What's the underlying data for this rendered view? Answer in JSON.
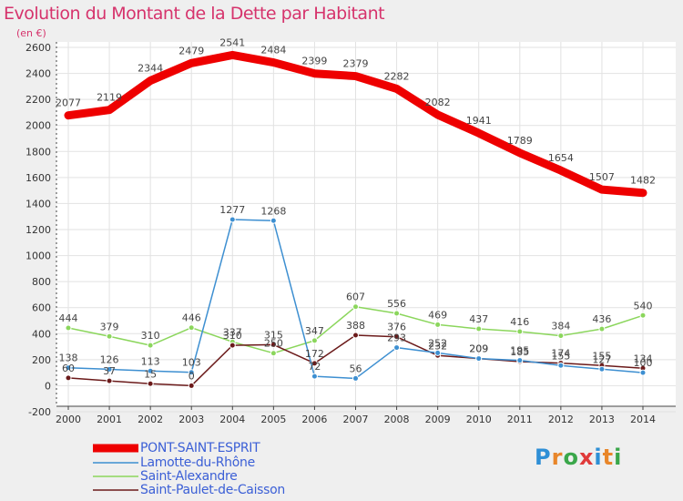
{
  "title": "Evolution du Montant de la Dette par Habitant",
  "subtitle": "(en €)",
  "logo": "Proxiti",
  "colors": {
    "title": "#d6336c",
    "background": "#efefef",
    "plot_background": "#ffffff",
    "legend_text": "#3b5fd6"
  },
  "chart_data": {
    "type": "line",
    "title": "Evolution du Montant de la Dette par Habitant",
    "ylabel": "(en €)",
    "xlabel": "",
    "x": [
      "2000",
      "2001",
      "2002",
      "2003",
      "2004",
      "2005",
      "2006",
      "2007",
      "2008",
      "2009",
      "2010",
      "2011",
      "2012",
      "2013",
      "2014"
    ],
    "yticks": [
      -200,
      0,
      200,
      400,
      600,
      800,
      1000,
      1200,
      1400,
      1600,
      1800,
      2000,
      2200,
      2400,
      2600
    ],
    "ylim": [
      -200,
      2600
    ],
    "grid": true,
    "legend_position": "bottom-left",
    "series": [
      {
        "name": "PONT-SAINT-ESPRIT",
        "color": "#ee0000",
        "values": [
          2077,
          2119,
          2344,
          2479,
          2541,
          2484,
          2399,
          2379,
          2282,
          2082,
          1941,
          1789,
          1654,
          1507,
          1482
        ]
      },
      {
        "name": "Lamotte-du-Rhône",
        "color": "#3d8fd1",
        "values": [
          138,
          126,
          113,
          103,
          1277,
          1268,
          72,
          56,
          293,
          252,
          209,
          195,
          155,
          127,
          100
        ]
      },
      {
        "name": "Saint-Alexandre",
        "color": "#8bd65c",
        "values": [
          444,
          379,
          310,
          446,
          337,
          250,
          347,
          607,
          556,
          469,
          437,
          416,
          384,
          436,
          540
        ]
      },
      {
        "name": "Saint-Paulet-de-Caisson",
        "color": "#6b1a1a",
        "values": [
          60,
          37,
          15,
          0,
          310,
          315,
          172,
          388,
          376,
          232,
          209,
          185,
          174,
          155,
          134
        ]
      }
    ]
  }
}
